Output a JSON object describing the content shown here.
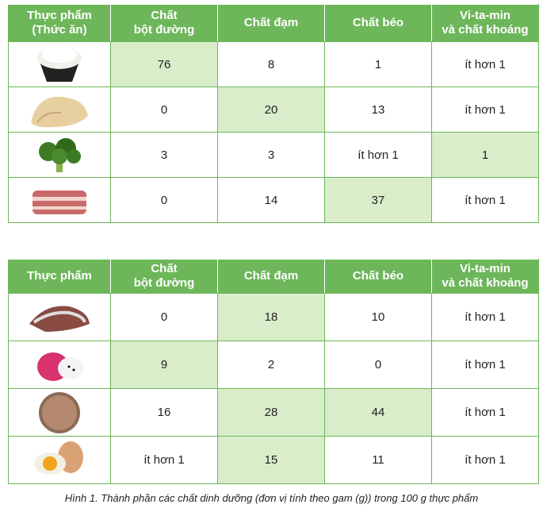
{
  "tables": [
    {
      "header": [
        "Thực phẩm\n(Thức ăn)",
        "Chất\nbột đường",
        "Chất đạm",
        "Chất béo",
        "Vi-ta-min\nvà chất khoáng"
      ],
      "rows": [
        [
          76,
          8,
          1,
          "ít hơn 1"
        ],
        [
          0,
          20,
          13,
          "ít hơn 1"
        ],
        [
          3,
          3,
          "ít hơn 1",
          1
        ],
        [
          0,
          14,
          37,
          "ít hơn 1"
        ]
      ],
      "highlight": [
        [
          0
        ],
        [
          1
        ],
        [
          3
        ],
        [
          2
        ]
      ]
    },
    {
      "header": [
        "Thực phẩm",
        "Chất\nbột đường",
        "Chất đạm",
        "Chất béo",
        "Vi-ta-min\nvà chất khoáng"
      ],
      "rows": [
        [
          0,
          18,
          10,
          "ít hơn 1"
        ],
        [
          9,
          2,
          0,
          "ít hơn 1"
        ],
        [
          16,
          28,
          44,
          "ít hơn 1"
        ],
        [
          "ít hơn 1",
          15,
          11,
          "ít hơn 1"
        ]
      ],
      "highlight": [
        [
          1
        ],
        [
          0
        ],
        [
          1,
          2
        ],
        [
          1
        ]
      ]
    }
  ],
  "caption": "Hình 1. Thành phần các chất dinh dưỡng (đơn vị tính theo gam (g)) trong 100 g thực phẩm"
}
